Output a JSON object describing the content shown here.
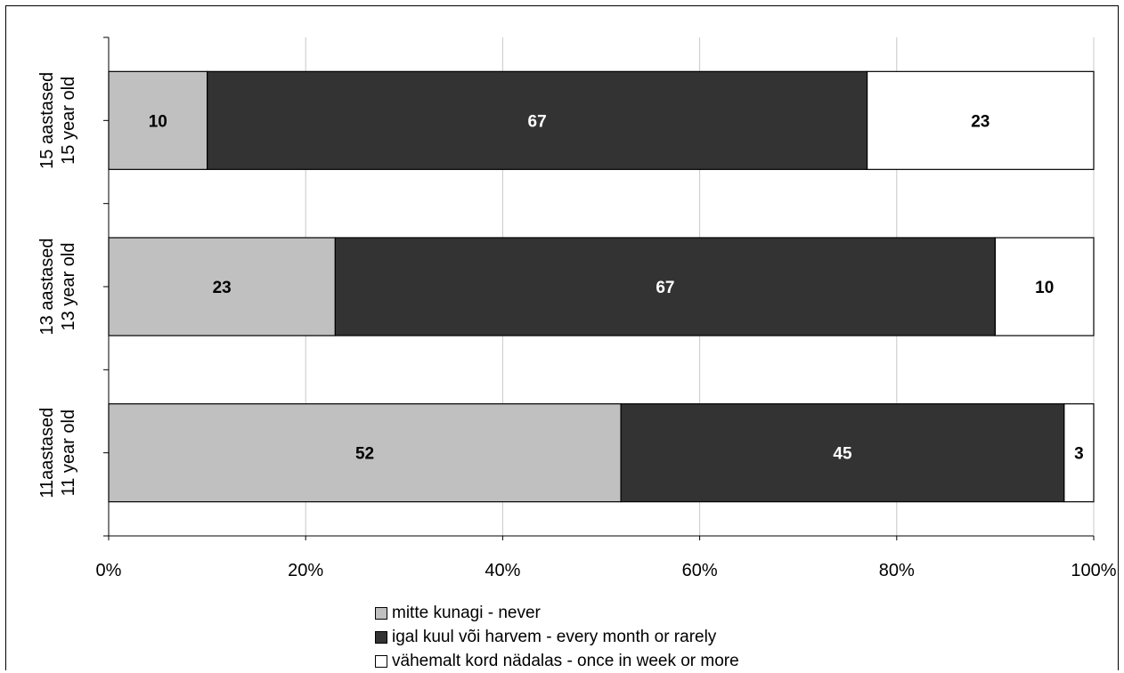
{
  "chart_data": {
    "type": "bar",
    "orientation": "horizontal",
    "stacked": "percent",
    "categories": [
      [
        "11aastased",
        "11 year old"
      ],
      [
        "13 aastased",
        "13 year old"
      ],
      [
        "15 aastased",
        "15 year old"
      ]
    ],
    "series": [
      {
        "name": "mitte kunagi - never",
        "values": [
          52,
          23,
          10
        ],
        "color": "#c0c0c0",
        "label_color": "#000000"
      },
      {
        "name": "igal kuul või harvem - every month or rarely",
        "values": [
          45,
          67,
          67
        ],
        "color": "#333333",
        "label_color": "#ffffff"
      },
      {
        "name": "vähemalt kord nädalas - once in week or more",
        "values": [
          3,
          10,
          23
        ],
        "color": "#ffffff",
        "label_color": "#000000"
      }
    ],
    "xticks": [
      "0%",
      "20%",
      "40%",
      "60%",
      "80%",
      "100%"
    ],
    "xlim": [
      0,
      100
    ],
    "grid": true,
    "legend_position": "bottom"
  }
}
